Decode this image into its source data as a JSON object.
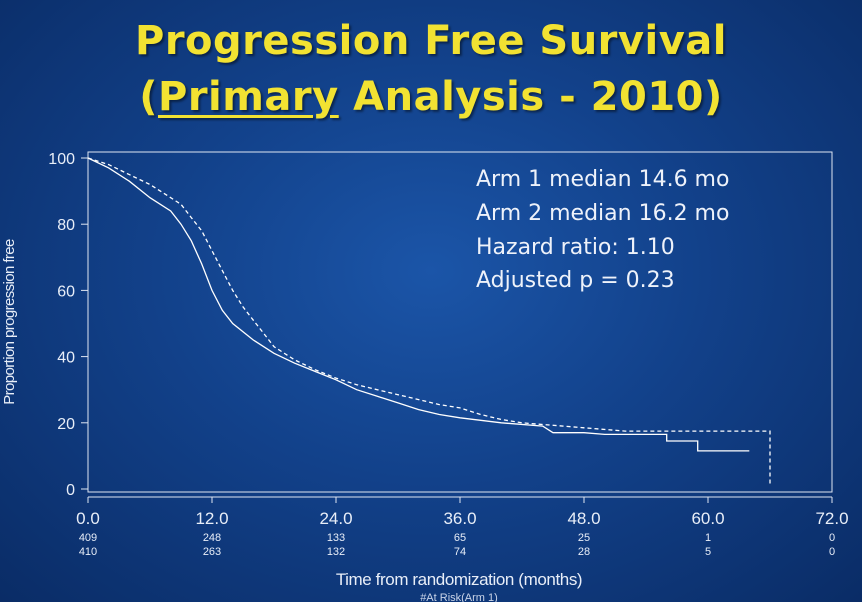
{
  "title": {
    "line1": "Progression Free Survival",
    "line2_open": "(",
    "line2_underlined": "Primary",
    "line2_rest": " Analysis  - 2010)"
  },
  "annotation": {
    "line1": "Arm 1 median 14.6 mo",
    "line2": "Arm 2 median 16.2 mo",
    "line3": "Hazard ratio: 1.10",
    "line4": "Adjusted p = 0.23"
  },
  "colors": {
    "background": "#12418a",
    "title": "#f2e232",
    "text": "#e8eef8",
    "line": "#ffffff"
  },
  "chart_data": {
    "type": "line",
    "xlabel": "Time from randomization (months)",
    "ylabel": "Proportion progression free",
    "xlim": [
      0,
      72
    ],
    "ylim": [
      0,
      100
    ],
    "x_ticks": [
      "0.0",
      "12.0",
      "24.0",
      "36.0",
      "48.0",
      "60.0",
      "72.0"
    ],
    "x_tick_values": [
      0,
      12,
      24,
      36,
      48,
      60,
      72
    ],
    "y_ticks": [
      "0",
      "20",
      "40",
      "60",
      "80",
      "100"
    ],
    "y_tick_values": [
      0,
      20,
      40,
      60,
      80,
      100
    ],
    "series": [
      {
        "style": "solid",
        "points": [
          [
            0,
            100
          ],
          [
            2,
            97
          ],
          [
            4,
            93
          ],
          [
            6,
            88
          ],
          [
            8,
            84
          ],
          [
            9,
            80
          ],
          [
            10,
            75
          ],
          [
            11,
            68
          ],
          [
            12,
            60
          ],
          [
            13,
            54
          ],
          [
            14,
            50
          ],
          [
            16,
            45
          ],
          [
            18,
            41
          ],
          [
            20,
            38
          ],
          [
            22,
            35.5
          ],
          [
            24,
            33
          ],
          [
            26,
            30
          ],
          [
            28,
            28
          ],
          [
            30,
            26
          ],
          [
            32,
            24
          ],
          [
            34,
            22.5
          ],
          [
            36,
            21.5
          ],
          [
            40,
            20
          ],
          [
            44,
            19
          ],
          [
            45,
            17
          ],
          [
            48,
            17
          ],
          [
            50,
            16.5
          ],
          [
            56,
            16.5
          ],
          [
            56,
            14.5
          ],
          [
            59,
            14.5
          ],
          [
            59,
            11.5
          ],
          [
            64,
            11.5
          ]
        ]
      },
      {
        "style": "dashed",
        "points": [
          [
            0,
            100
          ],
          [
            2,
            98
          ],
          [
            4,
            95
          ],
          [
            6,
            92
          ],
          [
            8,
            88
          ],
          [
            9,
            86
          ],
          [
            10,
            82
          ],
          [
            11,
            78
          ],
          [
            12,
            72
          ],
          [
            13,
            66
          ],
          [
            14,
            60
          ],
          [
            15,
            55
          ],
          [
            16,
            51
          ],
          [
            17,
            47
          ],
          [
            18,
            43
          ],
          [
            20,
            39
          ],
          [
            22,
            36
          ],
          [
            24,
            33.5
          ],
          [
            26,
            31.5
          ],
          [
            28,
            30
          ],
          [
            30,
            28.5
          ],
          [
            32,
            27
          ],
          [
            34,
            25.5
          ],
          [
            36,
            24.5
          ],
          [
            38,
            22.5
          ],
          [
            40,
            21
          ],
          [
            42,
            20
          ],
          [
            44,
            19.5
          ],
          [
            46,
            19
          ],
          [
            48,
            18.5
          ],
          [
            52,
            17.5
          ],
          [
            60,
            17.5
          ],
          [
            66,
            17.5
          ],
          [
            66,
            1
          ]
        ]
      }
    ],
    "at_risk": {
      "title": "#At Risk(Arm 1)",
      "rows": [
        [
          "409",
          "248",
          "133",
          "65",
          "25",
          "1",
          "0"
        ],
        [
          "410",
          "263",
          "132",
          "74",
          "28",
          "5",
          "0"
        ]
      ]
    }
  }
}
